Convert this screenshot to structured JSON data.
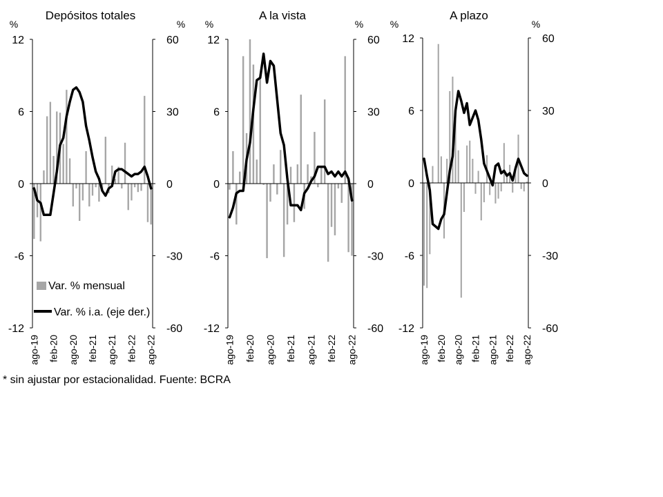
{
  "footnote": "* sin ajustar por estacionalidad. Fuente: BCRA",
  "legend": {
    "bar_label": "Var. % mensual",
    "line_label": "Var. % i.a. (eje der.)"
  },
  "colors": {
    "bars": "#a6a6a6",
    "line": "#000000",
    "axis": "#000000"
  },
  "chart_data": [
    {
      "type": "bar",
      "title": "Depósitos totales",
      "left_unit": "%",
      "right_unit": "%",
      "left_ticks": [
        "12",
        "6",
        "0",
        "-6",
        "-12"
      ],
      "right_ticks": [
        "60",
        "30",
        "0",
        "-30",
        "-60"
      ],
      "ylim_left": [
        -12,
        12
      ],
      "ylim_right": [
        -60,
        60
      ],
      "x_tick_labels": [
        "ago-19",
        "feb-20",
        "ago-20",
        "feb-21",
        "ago-21",
        "feb-22",
        "ago-22"
      ],
      "x_tick_index": [
        0,
        6,
        12,
        18,
        24,
        30,
        36
      ],
      "series": [
        {
          "name": "Var. % mensual",
          "kind": "bar",
          "axis": "left",
          "values": [
            -4.6,
            -2.8,
            -4.8,
            1.1,
            5.6,
            6.8,
            2.3,
            6.0,
            5.9,
            3.3,
            7.8,
            2.1,
            -1.9,
            -0.4,
            -3.1,
            -1.4,
            2.7,
            -1.9,
            -1.0,
            -0.3,
            -1.5,
            -0.5,
            3.9,
            -0.8,
            1.5,
            0.4,
            1.4,
            -0.4,
            3.4,
            -2.2,
            -1.4,
            -0.3,
            -0.7,
            -0.6,
            7.3,
            -3.2,
            -3.4
          ]
        },
        {
          "name": "Var. % i.a. (eje der.)",
          "kind": "line",
          "axis": "right",
          "values": [
            -2,
            -7,
            -8,
            -13,
            -13,
            -13,
            -4,
            5,
            16,
            19,
            28,
            34,
            39,
            40,
            38,
            34,
            24,
            18,
            11,
            5,
            2,
            -3,
            -5,
            -2,
            -1,
            5,
            6,
            6,
            5,
            4,
            3,
            4,
            4,
            5,
            7,
            3,
            -2
          ]
        }
      ]
    },
    {
      "type": "bar",
      "title": "A la vista",
      "left_unit": "%",
      "right_unit": "%",
      "left_ticks": [
        "12",
        "6",
        "0",
        "-6",
        "-12"
      ],
      "right_ticks": [
        "60",
        "30",
        "0",
        "-30",
        "-60"
      ],
      "ylim_left": [
        -12,
        12
      ],
      "ylim_right": [
        -60,
        60
      ],
      "x_tick_labels": [
        "ago-19",
        "feb-20",
        "ago-20",
        "feb-21",
        "ago-21",
        "feb-22",
        "ago-22"
      ],
      "x_tick_index": [
        0,
        6,
        12,
        18,
        24,
        30,
        36
      ],
      "series": [
        {
          "name": "Var. % mensual",
          "kind": "bar",
          "axis": "left",
          "values": [
            -0.5,
            2.7,
            -3.4,
            1.0,
            10.6,
            4.2,
            12.0,
            9.9,
            2.0,
            9.1,
            -0.1,
            -6.2,
            -1.5,
            1.6,
            -0.9,
            2.8,
            -6.1,
            -3.4,
            1.4,
            -3.2,
            1.6,
            7.4,
            -2.1,
            1.6,
            0.6,
            4.3,
            -0.3,
            1.4,
            7.0,
            -6.5,
            -3.6,
            -4.3,
            -0.4,
            -1.6,
            10.6,
            -5.7,
            -6.0
          ]
        },
        {
          "name": "Var. % i.a. (eje der.)",
          "kind": "line",
          "axis": "right",
          "values": [
            -14,
            -10,
            -4,
            -3,
            -3,
            10,
            17,
            31,
            43,
            44,
            54,
            42,
            51,
            49,
            35,
            21,
            16,
            2,
            -9,
            -9,
            -9,
            -11,
            -4,
            -2,
            1,
            3,
            7,
            7,
            7,
            4,
            5,
            3,
            5,
            3,
            5,
            2,
            -7
          ]
        }
      ]
    },
    {
      "type": "bar",
      "title": "A plazo",
      "left_unit": "%",
      "right_unit": "%",
      "left_ticks": [
        "12",
        "6",
        "0",
        "-6",
        "-12"
      ],
      "right_ticks": [
        "60",
        "30",
        "0",
        "-30",
        "-60"
      ],
      "ylim_left": [
        -12,
        12
      ],
      "ylim_right": [
        -60,
        60
      ],
      "x_tick_labels": [
        "ago-19",
        "feb-20",
        "ago-20",
        "feb-21",
        "ago-21",
        "feb-22",
        "ago-22"
      ],
      "x_tick_index": [
        0,
        6,
        12,
        18,
        24,
        30,
        36
      ],
      "series": [
        {
          "name": "Var. % mensual",
          "kind": "bar",
          "axis": "left",
          "values": [
            -8.5,
            -8.7,
            -5.9,
            1.4,
            0.0,
            11.5,
            2.2,
            -4.6,
            2.0,
            7.6,
            8.8,
            5.3,
            2.7,
            -9.5,
            -2.4,
            3.1,
            3.5,
            2.0,
            -0.9,
            1.0,
            -3.1,
            -1.6,
            2.3,
            -1.0,
            0.0,
            -1.7,
            -1.3,
            -0.7,
            3.3,
            0.8,
            1.5,
            -0.8,
            1.4,
            4.0,
            -0.5,
            -0.7,
            0.1
          ]
        },
        {
          "name": "Var. % i.a. (eje der.)",
          "kind": "line",
          "axis": "right",
          "values": [
            10,
            3,
            -3,
            -17,
            -18,
            -19,
            -15,
            -13,
            -4,
            5,
            11,
            30,
            38,
            34,
            29,
            33,
            24,
            27,
            30,
            26,
            18,
            8,
            5,
            2,
            -1,
            7,
            8,
            4,
            5,
            3,
            4,
            1,
            6,
            10,
            7,
            4,
            3
          ]
        }
      ]
    }
  ]
}
